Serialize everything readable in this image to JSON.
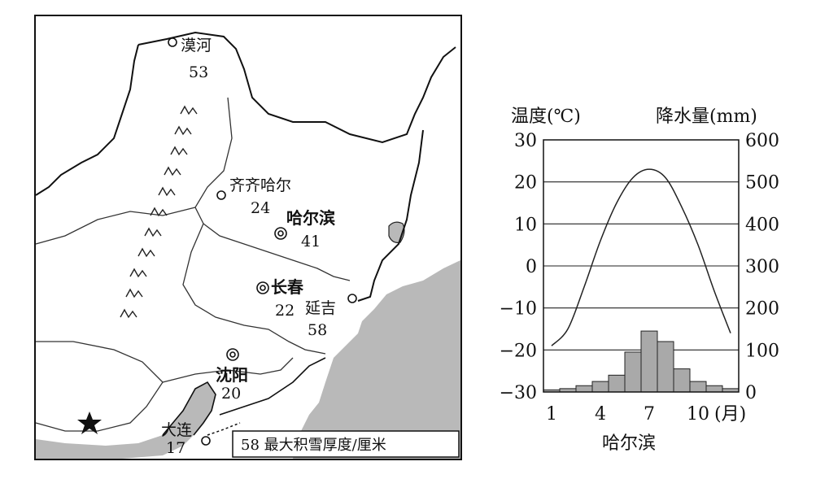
{
  "map": {
    "cities": [
      {
        "name": "漠河",
        "value": "53",
        "symbol": "town"
      },
      {
        "name": "齐齐哈尔",
        "value": "24",
        "symbol": "town"
      },
      {
        "name": "哈尔滨",
        "value": "41",
        "symbol": "capital"
      },
      {
        "name": "长春",
        "value": "22",
        "symbol": "capital"
      },
      {
        "name": "延吉",
        "value": "58",
        "symbol": "town"
      },
      {
        "name": "沈阳",
        "value": "20",
        "symbol": "capital"
      },
      {
        "name": "大连",
        "value": "17",
        "symbol": "town"
      }
    ],
    "legend": "58 最大积雪厚度/厘米",
    "star_icon": "national-capital-star-icon",
    "colors": {
      "sea": "#b9b9b9",
      "border": "#222222"
    }
  },
  "chart_data": {
    "type": "climograph",
    "station": "哈尔滨",
    "left_axis_label": "温度(℃)",
    "right_axis_label": "降水量(mm)",
    "x_unit": "(月)",
    "x_ticks": [
      "1",
      "4",
      "7",
      "10"
    ],
    "months": [
      1,
      2,
      3,
      4,
      5,
      6,
      7,
      8,
      9,
      10,
      11,
      12
    ],
    "temperature": [
      -19,
      -15,
      -5,
      6,
      15,
      21,
      23,
      21,
      14,
      5,
      -6,
      -16
    ],
    "precipitation": [
      5,
      8,
      15,
      25,
      40,
      95,
      145,
      120,
      55,
      25,
      15,
      8
    ],
    "left_ticks": [
      "30",
      "20",
      "10",
      "0",
      "−10",
      "−20",
      "−30"
    ],
    "right_ticks": [
      "600",
      "500",
      "400",
      "300",
      "200",
      "100",
      "0"
    ],
    "temperature_range": [
      -30,
      30
    ],
    "precipitation_range": [
      0,
      600
    ],
    "bar_color": "#a9a9a9",
    "line_color": "#222222"
  }
}
